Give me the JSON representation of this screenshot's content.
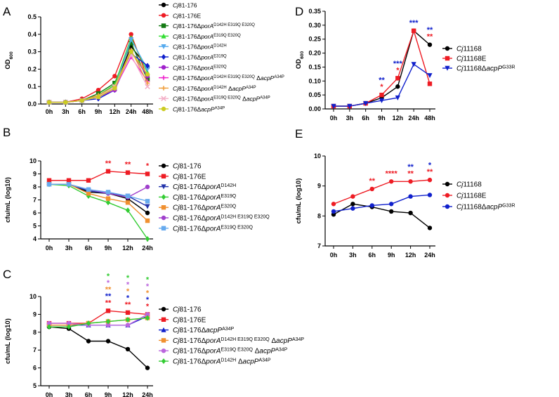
{
  "chart_data": [
    {
      "panel": "A",
      "type": "line",
      "title": "",
      "xlabel": "",
      "ylabel": "OD600",
      "ylabel_parts": [
        "OD",
        "600"
      ],
      "categories": [
        "0h",
        "3h",
        "6h",
        "9h",
        "12h",
        "24h",
        "48h"
      ],
      "ylim": [
        0,
        0.5
      ],
      "yticks": [
        "0.0",
        "0.1",
        "0.2",
        "0.3",
        "0.4",
        "0.5"
      ],
      "ytick_values": [
        0,
        0.1,
        0.2,
        0.3,
        0.4,
        0.5
      ],
      "series": [
        {
          "name_parts": [
            "Cj",
            "81-176",
            "",
            "",
            ""
          ],
          "color": "#000000",
          "marker": "circle",
          "values": [
            0.01,
            0.01,
            0.02,
            0.05,
            0.1,
            0.33,
            0.21
          ]
        },
        {
          "name_parts": [
            "Cj",
            "81-176E",
            "",
            "",
            ""
          ],
          "color": "#ee1c24",
          "marker": "circle",
          "values": [
            0.01,
            0.01,
            0.03,
            0.08,
            0.16,
            0.4,
            0.15
          ]
        },
        {
          "name_parts": [
            "Cj",
            "81-176Δ",
            "porA",
            "D142H E319Q E320Q",
            ""
          ],
          "color": "#137a13",
          "marker": "square",
          "values": [
            0.01,
            0.01,
            0.02,
            0.06,
            0.12,
            0.35,
            0.14
          ]
        },
        {
          "name_parts": [
            "Cj",
            "81-176Δ",
            "porA",
            "E319Q E320Q",
            ""
          ],
          "color": "#33dd33",
          "marker": "triangle-up",
          "values": [
            0.01,
            0.01,
            0.02,
            0.05,
            0.11,
            0.38,
            0.18
          ]
        },
        {
          "name_parts": [
            "Cj",
            "81-176Δ",
            "porA",
            "D142H",
            ""
          ],
          "color": "#55aaee",
          "marker": "triangle-down",
          "values": [
            0.01,
            0.01,
            0.02,
            0.04,
            0.09,
            0.37,
            0.2
          ]
        },
        {
          "name_parts": [
            "Cj",
            "81-176Δ",
            "porA",
            "E319Q",
            ""
          ],
          "color": "#1020cc",
          "marker": "diamond",
          "values": [
            0.01,
            0.01,
            0.02,
            0.03,
            0.08,
            0.29,
            0.22
          ]
        },
        {
          "name_parts": [
            "Cj",
            "81-176Δ",
            "porA",
            "E320Q",
            ""
          ],
          "color": "#a020cc",
          "marker": "circle",
          "values": [
            0.01,
            0.01,
            0.02,
            0.04,
            0.08,
            0.3,
            0.16
          ]
        },
        {
          "name_parts": [
            "Cj",
            "81-176Δ",
            "porA",
            "D142H E319Q E320Q",
            " ΔacpP^A34P"
          ],
          "color": "#ee22cc",
          "marker": "plus",
          "values": [
            0.01,
            0.01,
            0.02,
            0.04,
            0.09,
            0.27,
            0.13
          ]
        },
        {
          "name_parts": [
            "Cj",
            "81-176Δ",
            "porA",
            "D142H",
            " ΔacpP^A34P"
          ],
          "color": "#f0a040",
          "marker": "plus",
          "values": [
            0.01,
            0.01,
            0.02,
            0.05,
            0.1,
            0.31,
            0.12
          ]
        },
        {
          "name_parts": [
            "Cj",
            "81-176Δ",
            "porA",
            "E319Q E320Q",
            " ΔacpP^A34P"
          ],
          "color": "#f4b0c8",
          "marker": "x",
          "values": [
            0.01,
            0.01,
            0.02,
            0.04,
            0.1,
            0.28,
            0.1
          ]
        },
        {
          "name_parts": [
            "Cj",
            "81-176Δ",
            "acpP",
            "A34P",
            ""
          ],
          "color": "#cccc22",
          "marker": "circle",
          "values": [
            0.01,
            0.01,
            0.02,
            0.04,
            0.09,
            0.3,
            0.17
          ]
        }
      ]
    },
    {
      "panel": "B",
      "type": "line",
      "title": "",
      "xlabel": "",
      "ylabel": "cfu/mL (log10)",
      "categories": [
        "0h",
        "3h",
        "6h",
        "9h",
        "12h",
        "24h"
      ],
      "ylim": [
        4,
        10
      ],
      "yticks": [
        "4",
        "5",
        "6",
        "7",
        "8",
        "9",
        "10"
      ],
      "ytick_values": [
        4,
        5,
        6,
        7,
        8,
        9,
        10
      ],
      "series": [
        {
          "name_parts": [
            "Cj",
            "81-176",
            "",
            ""
          ],
          "color": "#000000",
          "marker": "circle",
          "values": [
            8.2,
            8.2,
            7.6,
            7.5,
            7.1,
            6.0
          ]
        },
        {
          "name_parts": [
            "Cj",
            "81-176E",
            "",
            ""
          ],
          "color": "#ee1c24",
          "marker": "square",
          "values": [
            8.5,
            8.5,
            8.5,
            9.2,
            9.1,
            9.0
          ]
        },
        {
          "name_parts": [
            "Cj",
            "81-176Δ",
            "porA",
            "D142H"
          ],
          "color": "#2233aa",
          "marker": "triangle-down",
          "values": [
            8.2,
            8.2,
            7.7,
            7.5,
            7.3,
            6.5
          ]
        },
        {
          "name_parts": [
            "Cj",
            "81-176Δ",
            "porA",
            "E319Q"
          ],
          "color": "#33cc33",
          "marker": "diamond",
          "values": [
            8.2,
            8.1,
            7.3,
            6.8,
            6.2,
            4.0
          ]
        },
        {
          "name_parts": [
            "Cj",
            "81-176Δ",
            "porA",
            "E320Q"
          ],
          "color": "#f09030",
          "marker": "square",
          "values": [
            8.2,
            8.2,
            7.5,
            7.1,
            6.8,
            5.4
          ]
        },
        {
          "name_parts": [
            "Cj",
            "81-176Δ",
            "porA",
            "D142H E319Q E320Q"
          ],
          "color": "#a040cc",
          "marker": "circle",
          "values": [
            8.2,
            8.2,
            7.8,
            7.5,
            7.2,
            8.0
          ]
        },
        {
          "name_parts": [
            "Cj",
            "81-176Δ",
            "porA",
            "E319Q E320Q"
          ],
          "color": "#66aaee",
          "marker": "square",
          "values": [
            8.2,
            8.2,
            7.8,
            7.6,
            7.3,
            6.9
          ]
        }
      ],
      "significance": [
        {
          "x_index": 3,
          "stars": [
            {
              "text": "**",
              "color": "#ee1c24"
            }
          ]
        },
        {
          "x_index": 4,
          "stars": [
            {
              "text": "**",
              "color": "#ee1c24"
            }
          ]
        },
        {
          "x_index": 5,
          "stars": [
            {
              "text": "*",
              "color": "#ee1c24"
            }
          ]
        }
      ]
    },
    {
      "panel": "C",
      "type": "line",
      "title": "",
      "xlabel": "",
      "ylabel": "cfu/mL (log10)",
      "categories": [
        "0h",
        "3h",
        "6h",
        "9h",
        "12h",
        "24h"
      ],
      "ylim": [
        5,
        10
      ],
      "yticks": [
        "5",
        "6",
        "7",
        "8",
        "9",
        "10"
      ],
      "ytick_values": [
        5,
        6,
        7,
        8,
        9,
        10
      ],
      "series": [
        {
          "name_parts": [
            "Cj",
            "81-176",
            "",
            "",
            ""
          ],
          "color": "#000000",
          "marker": "circle",
          "values": [
            8.3,
            8.2,
            7.5,
            7.5,
            7.05,
            6.0
          ]
        },
        {
          "name_parts": [
            "Cj",
            "81-176E",
            "",
            "",
            ""
          ],
          "color": "#ee1c24",
          "marker": "square",
          "values": [
            8.5,
            8.5,
            8.5,
            9.2,
            9.1,
            9.0
          ]
        },
        {
          "name_parts": [
            "Cj",
            "81-176Δ",
            "acpP",
            "A34P",
            ""
          ],
          "color": "#1020cc",
          "marker": "triangle-up",
          "values": [
            8.4,
            8.4,
            8.4,
            8.4,
            8.4,
            8.9
          ]
        },
        {
          "name_parts": [
            "Cj",
            "81-176Δ",
            "porA",
            "D142H E319Q E320Q",
            " ΔacpP^A34P"
          ],
          "color": "#f09030",
          "marker": "square",
          "values": [
            8.4,
            8.4,
            8.5,
            8.6,
            8.7,
            8.8
          ]
        },
        {
          "name_parts": [
            "Cj",
            "81-176Δ",
            "porA",
            "E319Q E320Q",
            " ΔacpP^A34P"
          ],
          "color": "#bb66dd",
          "marker": "circle",
          "values": [
            8.5,
            8.5,
            8.4,
            8.4,
            8.4,
            9.0
          ]
        },
        {
          "name_parts": [
            "Cj",
            "81-176Δ",
            "porA",
            "D142H",
            " ΔacpP^A34P"
          ],
          "color": "#33cc33",
          "marker": "diamond",
          "values": [
            8.3,
            8.3,
            8.5,
            8.6,
            8.7,
            8.8
          ]
        }
      ],
      "significance": [
        {
          "x_index": 3,
          "stars": [
            {
              "text": "*",
              "color": "#33cc33"
            },
            {
              "text": "*",
              "color": "#bb66dd"
            },
            {
              "text": "**",
              "color": "#f09030"
            },
            {
              "text": "**",
              "color": "#1020cc"
            },
            {
              "text": "**",
              "color": "#ee1c24"
            }
          ]
        },
        {
          "x_index": 4,
          "stars": [
            {
              "text": "*",
              "color": "#33cc33"
            },
            {
              "text": "*",
              "color": "#bb66dd"
            },
            {
              "text": "*",
              "color": "#f09030"
            },
            {
              "text": "*",
              "color": "#1020cc"
            },
            {
              "text": "**",
              "color": "#ee1c24"
            }
          ]
        },
        {
          "x_index": 5,
          "stars": [
            {
              "text": "*",
              "color": "#33cc33"
            },
            {
              "text": "*",
              "color": "#bb66dd"
            },
            {
              "text": "*",
              "color": "#f09030"
            },
            {
              "text": "*",
              "color": "#1020cc"
            },
            {
              "text": "*",
              "color": "#ee1c24"
            }
          ]
        }
      ]
    },
    {
      "panel": "D",
      "type": "line",
      "title": "",
      "xlabel": "",
      "ylabel": "OD600",
      "ylabel_parts": [
        "OD",
        "600"
      ],
      "categories": [
        "0h",
        "3h",
        "6h",
        "9h",
        "12h",
        "24h",
        "48h"
      ],
      "ylim": [
        0,
        0.35
      ],
      "yticks": [
        "0.00",
        "0.05",
        "0.10",
        "0.15",
        "0.20",
        "0.25",
        "0.30",
        "0.35"
      ],
      "ytick_values": [
        0,
        0.05,
        0.1,
        0.15,
        0.2,
        0.25,
        0.3,
        0.35
      ],
      "series": [
        {
          "name_parts": [
            "Cj",
            "11168",
            "",
            ""
          ],
          "color": "#000000",
          "marker": "circle",
          "values": [
            0.01,
            0.01,
            0.02,
            0.04,
            0.08,
            0.28,
            0.23
          ]
        },
        {
          "name_parts": [
            "Cj",
            "11168E",
            "",
            ""
          ],
          "color": "#ee1c24",
          "marker": "square",
          "values": [
            0.01,
            0.01,
            0.02,
            0.05,
            0.11,
            0.28,
            0.09
          ]
        },
        {
          "name_parts": [
            "Cj",
            "11168Δ",
            "acpP",
            "G33R"
          ],
          "color": "#1020cc",
          "marker": "triangle-down",
          "values": [
            0.01,
            0.01,
            0.02,
            0.03,
            0.04,
            0.16,
            0.12
          ]
        }
      ],
      "significance": [
        {
          "x_index": 3,
          "stars": [
            {
              "text": "**",
              "color": "#1020cc"
            },
            {
              "text": "*",
              "color": "#ee1c24"
            }
          ]
        },
        {
          "x_index": 4,
          "stars": [
            {
              "text": "***",
              "color": "#1020cc"
            },
            {
              "text": "*",
              "color": "#ee1c24"
            }
          ]
        },
        {
          "x_index": 5,
          "stars": [
            {
              "text": "***",
              "color": "#1020cc"
            }
          ]
        },
        {
          "x_index": 6,
          "stars": [
            {
              "text": "**",
              "color": "#1020cc"
            },
            {
              "text": "**",
              "color": "#ee1c24"
            }
          ]
        }
      ]
    },
    {
      "panel": "E",
      "type": "line",
      "title": "",
      "xlabel": "",
      "ylabel": "cfu/mL (log10)",
      "categories": [
        "0h",
        "3h",
        "6h",
        "9h",
        "12h",
        "24h"
      ],
      "ylim": [
        7,
        10
      ],
      "yticks": [
        "7",
        "8",
        "9",
        "10"
      ],
      "ytick_values": [
        7,
        8,
        9,
        10
      ],
      "series": [
        {
          "name_parts": [
            "Cj",
            "11168",
            "",
            ""
          ],
          "color": "#000000",
          "marker": "circle",
          "values": [
            8.05,
            8.4,
            8.3,
            8.15,
            8.1,
            7.6
          ]
        },
        {
          "name_parts": [
            "Cj",
            "11168E",
            "",
            ""
          ],
          "color": "#ee1c24",
          "marker": "circle",
          "values": [
            8.4,
            8.65,
            8.9,
            9.15,
            9.15,
            9.2
          ]
        },
        {
          "name_parts": [
            "Cj",
            "11168Δ",
            "acpP",
            "G33R"
          ],
          "color": "#1020cc",
          "marker": "circle",
          "values": [
            8.15,
            8.25,
            8.35,
            8.4,
            8.65,
            8.7
          ]
        }
      ],
      "significance": [
        {
          "x_index": 2,
          "stars": [
            {
              "text": "**",
              "color": "#ee1c24"
            }
          ]
        },
        {
          "x_index": 3,
          "stars": [
            {
              "text": "****",
              "color": "#ee1c24"
            }
          ]
        },
        {
          "x_index": 4,
          "stars": [
            {
              "text": "**",
              "color": "#1020cc"
            },
            {
              "text": "**",
              "color": "#ee1c24"
            }
          ]
        },
        {
          "x_index": 5,
          "stars": [
            {
              "text": "*",
              "color": "#1020cc"
            },
            {
              "text": "**",
              "color": "#ee1c24"
            }
          ]
        }
      ]
    }
  ]
}
